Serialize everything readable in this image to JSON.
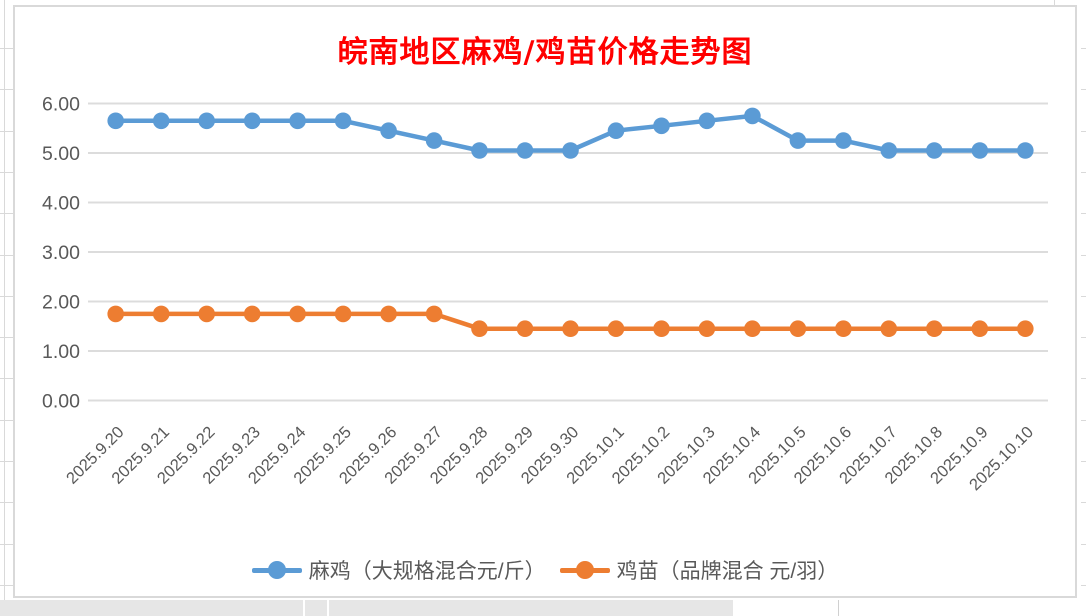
{
  "title": {
    "text": "皖南地区麻鸡/鸡苗价格走势图",
    "color": "#FF0000"
  },
  "chart_data": {
    "type": "line",
    "title": "皖南地区麻鸡/鸡苗价格走势图",
    "categories": [
      "2025.9.20",
      "2025.9.21",
      "2025.9.22",
      "2025.9.23",
      "2025.9.24",
      "2025.9.25",
      "2025.9.26",
      "2025.9.27",
      "2025.9.28",
      "2025.9.29",
      "2025.9.30",
      "2025.10.1",
      "2025.10.2",
      "2025.10.3",
      "2025.10.4",
      "2025.10.5",
      "2025.10.6",
      "2025.10.7",
      "2025.10.8",
      "2025.10.9",
      "2025.10.10"
    ],
    "series": [
      {
        "name": "麻鸡（大规格混合元/斤）",
        "color": "#5B9BD5",
        "values": [
          5.65,
          5.65,
          5.65,
          5.65,
          5.65,
          5.65,
          5.45,
          5.25,
          5.05,
          5.05,
          5.05,
          5.45,
          5.55,
          5.65,
          5.75,
          5.25,
          5.25,
          5.05,
          5.05,
          5.05,
          5.05
        ]
      },
      {
        "name": "鸡苗（品牌混合 元/羽）",
        "color": "#ED7D31",
        "values": [
          1.75,
          1.75,
          1.75,
          1.75,
          1.75,
          1.75,
          1.75,
          1.75,
          1.45,
          1.45,
          1.45,
          1.45,
          1.45,
          1.45,
          1.45,
          1.45,
          1.45,
          1.45,
          1.45,
          1.45,
          1.45
        ]
      }
    ],
    "xlabel": "",
    "ylabel": "",
    "ylim": [
      0,
      6
    ],
    "ytick_labels": [
      "0.00",
      "1.00",
      "2.00",
      "3.00",
      "4.00",
      "5.00",
      "6.00"
    ],
    "x_label_rotation": -45,
    "grid": true,
    "legend_position": "bottom"
  },
  "legend": {
    "items": [
      {
        "label": "麻鸡（大规格混合元/斤）",
        "color": "#5B9BD5"
      },
      {
        "label": "鸡苗（品牌混合 元/羽）",
        "color": "#ED7D31"
      }
    ]
  },
  "colors": {
    "title": "#FF0000",
    "axis_text": "#595959",
    "gridline": "#DCDCDC",
    "frame_border": "#D9D9D9",
    "background": "#FFFFFF"
  }
}
